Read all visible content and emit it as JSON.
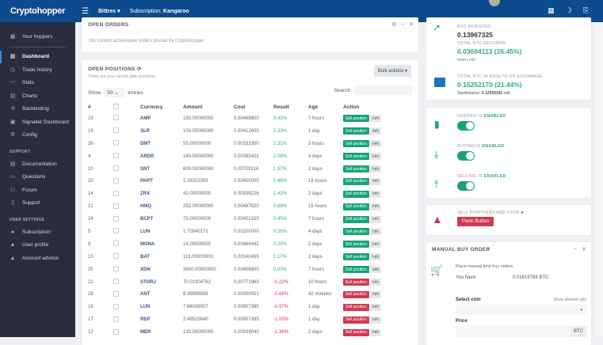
{
  "topbar": {
    "logo": "Cryptohopper",
    "exchange": "Bittrex ▾",
    "subscription_label": "Subscription:",
    "subscription_value": "Kangaroo"
  },
  "sidebar": {
    "top": [
      {
        "label": "Your hoppers",
        "icon": "grid-icon"
      }
    ],
    "main": [
      {
        "label": "Dashboard",
        "icon": "dashboard-icon",
        "active": true
      },
      {
        "label": "Trade history",
        "icon": "history-icon"
      },
      {
        "label": "Stats",
        "icon": "stats-icon"
      },
      {
        "label": "Charts",
        "icon": "chart-icon"
      },
      {
        "label": "Backtesting",
        "icon": "backtest-icon"
      },
      {
        "label": "Signaller Dashboard",
        "icon": "signal-icon"
      },
      {
        "label": "Config",
        "icon": "gear-icon"
      }
    ],
    "support_title": "SUPPORT",
    "support": [
      {
        "label": "Documentation",
        "icon": "docs-icon"
      },
      {
        "label": "Questions",
        "icon": "questions-icon"
      },
      {
        "label": "Forum",
        "icon": "forum-icon"
      },
      {
        "label": "Support",
        "icon": "support-icon"
      }
    ],
    "user_title": "USER SETTINGS",
    "user": [
      {
        "label": "Subscription",
        "icon": "subscription-icon"
      },
      {
        "label": "User profile",
        "icon": "user-icon"
      },
      {
        "label": "Account advisor",
        "icon": "advisor-icon"
      }
    ]
  },
  "open_orders": {
    "title": "OPEN ORDERS",
    "empty": "No current active/open orders placed by Cryptohopper"
  },
  "open_positions": {
    "title": "OPEN POSITIONS",
    "subtitle": "These are your current open positions.",
    "bulk": "Bulk actions ▾",
    "show": "Show",
    "entries_value": "50",
    "entries": "entries",
    "search": "Search:",
    "columns": [
      "#",
      "",
      "Currency",
      "Amount",
      "Cost",
      "Result",
      "Age",
      "Action"
    ],
    "sell_label": "Sell position",
    "info_label": "Info",
    "rows": [
      [
        "23",
        "AMP",
        "150.00000000",
        "0.00468600",
        "3.43%",
        "7 hours"
      ],
      [
        "19",
        "SLR",
        "100.00000000",
        "0.00412600",
        "2.33%",
        "1 day"
      ],
      [
        "26",
        "DMT",
        "55.00000000",
        "0.00333300",
        "2.31%",
        "3 hours"
      ],
      [
        "4",
        "ARDR",
        "180.00000000",
        "0.00392422",
        "2.08%",
        "4 days"
      ],
      [
        "10",
        "SNT",
        "600.00000000",
        "0.00729114",
        "1.57%",
        "2 days"
      ],
      [
        "20",
        "PART",
        "2.28202393",
        "0.00400000",
        "1.48%",
        "18 hours"
      ],
      [
        "14",
        "ZRX",
        "42.00000000",
        "0.00338226",
        "1.42%",
        "2 days"
      ],
      [
        "21",
        "HMQ",
        "252.00000000",
        "0.00487620",
        "0.88%",
        "15 hours"
      ],
      [
        "24",
        "BCPT",
        "75.00000000",
        "0.00402150",
        "0.45%",
        "7 hours"
      ],
      [
        "5",
        "LUN",
        "1.70940171",
        "0.00200000",
        "0.26%",
        "4 days"
      ],
      [
        "8",
        "MONA",
        "14.00000000",
        "0.00666442",
        "0.25%",
        "2 days"
      ],
      [
        "13",
        "BAT",
        "119.00000000",
        "0.00340459",
        "0.17%",
        "2 days"
      ],
      [
        "25",
        "XDN",
        "3600.00000000",
        "0.00406800",
        "0.00%",
        "7 hours"
      ],
      [
        "22",
        "STORJ",
        "70.01904762",
        "0.00771960",
        "-0.22%",
        "10 hours"
      ],
      [
        "28",
        "ANT",
        "8.49998586",
        "0.00300551",
        "-0.68%",
        "42 minutes"
      ],
      [
        "16",
        "LUN",
        "7.66038007",
        "0.00907395",
        "-0.97%",
        "1 day"
      ],
      [
        "17",
        "REP",
        "2.49525640",
        "0.00907395",
        "-1.00%",
        "1 day"
      ],
      [
        "12",
        "MER",
        "130.00000000",
        "0.00339040",
        "-1.38%",
        "2 days"
      ]
    ]
  },
  "stats": {
    "invested_label": "BTC INVESTED",
    "invested": "0.13967325",
    "returns_label": "TOTAL BTC RETURNS",
    "returns": "0.03694113 (26.45%)",
    "reset": "reset",
    "sep": "|",
    "info": "info",
    "assets_label": "TOTAL BTC IN ASSETS ON EXCHANGE",
    "assets": "0.15252170 (21.44%)",
    "start_label": "Startbalance:",
    "start_value": "0.12559181",
    "edit": "edit"
  },
  "status": {
    "hopper": "HOPPER IS",
    "buying": "BUYING IS",
    "selling": "SELLING IS",
    "enabled": "ENABLED"
  },
  "panic": {
    "label": "SELL POSITIONS AND STOP",
    "button": "Panic Button"
  },
  "manual": {
    "title": "MANUAL BUY ORDER",
    "desc": "Place manual limit buy orders.",
    "you_have": "You have:",
    "balance": "0.01619788 BTC",
    "select_coin": "Select coin",
    "show_allowed": "Show allowed only",
    "price": "Price",
    "unit": "BTC"
  },
  "colors": {
    "topbar": "#0d4a8e",
    "sidebar": "#2a2d3e",
    "green": "#18a37a",
    "red": "#d03a55"
  }
}
